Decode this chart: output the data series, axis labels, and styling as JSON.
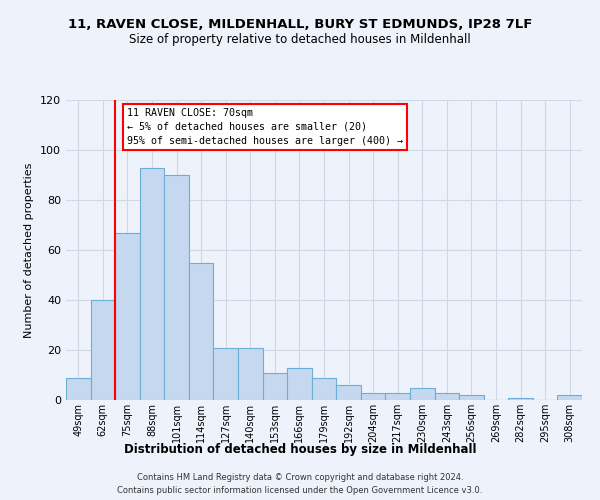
{
  "title": "11, RAVEN CLOSE, MILDENHALL, BURY ST EDMUNDS, IP28 7LF",
  "subtitle": "Size of property relative to detached houses in Mildenhall",
  "xlabel": "Distribution of detached houses by size in Mildenhall",
  "ylabel": "Number of detached properties",
  "bar_labels": [
    "49sqm",
    "62sqm",
    "75sqm",
    "88sqm",
    "101sqm",
    "114sqm",
    "127sqm",
    "140sqm",
    "153sqm",
    "166sqm",
    "179sqm",
    "192sqm",
    "204sqm",
    "217sqm",
    "230sqm",
    "243sqm",
    "256sqm",
    "269sqm",
    "282sqm",
    "295sqm",
    "308sqm"
  ],
  "bar_heights": [
    9,
    40,
    67,
    93,
    90,
    55,
    21,
    21,
    11,
    13,
    9,
    6,
    3,
    3,
    5,
    3,
    2,
    0,
    1,
    0,
    2
  ],
  "bar_color": "#c5d8f0",
  "bar_edge_color": "#6baed6",
  "ylim": [
    0,
    120
  ],
  "yticks": [
    0,
    20,
    40,
    60,
    80,
    100,
    120
  ],
  "annotation_title": "11 RAVEN CLOSE: 70sqm",
  "annotation_line1": "← 5% of detached houses are smaller (20)",
  "annotation_line2": "95% of semi-detached houses are larger (400) →",
  "footnote1": "Contains HM Land Registry data © Crown copyright and database right 2024.",
  "footnote2": "Contains public sector information licensed under the Open Government Licence v3.0.",
  "background_color": "#eef2fb",
  "plot_bg_color": "#eef2fb",
  "grid_color": "#d0d8e8"
}
